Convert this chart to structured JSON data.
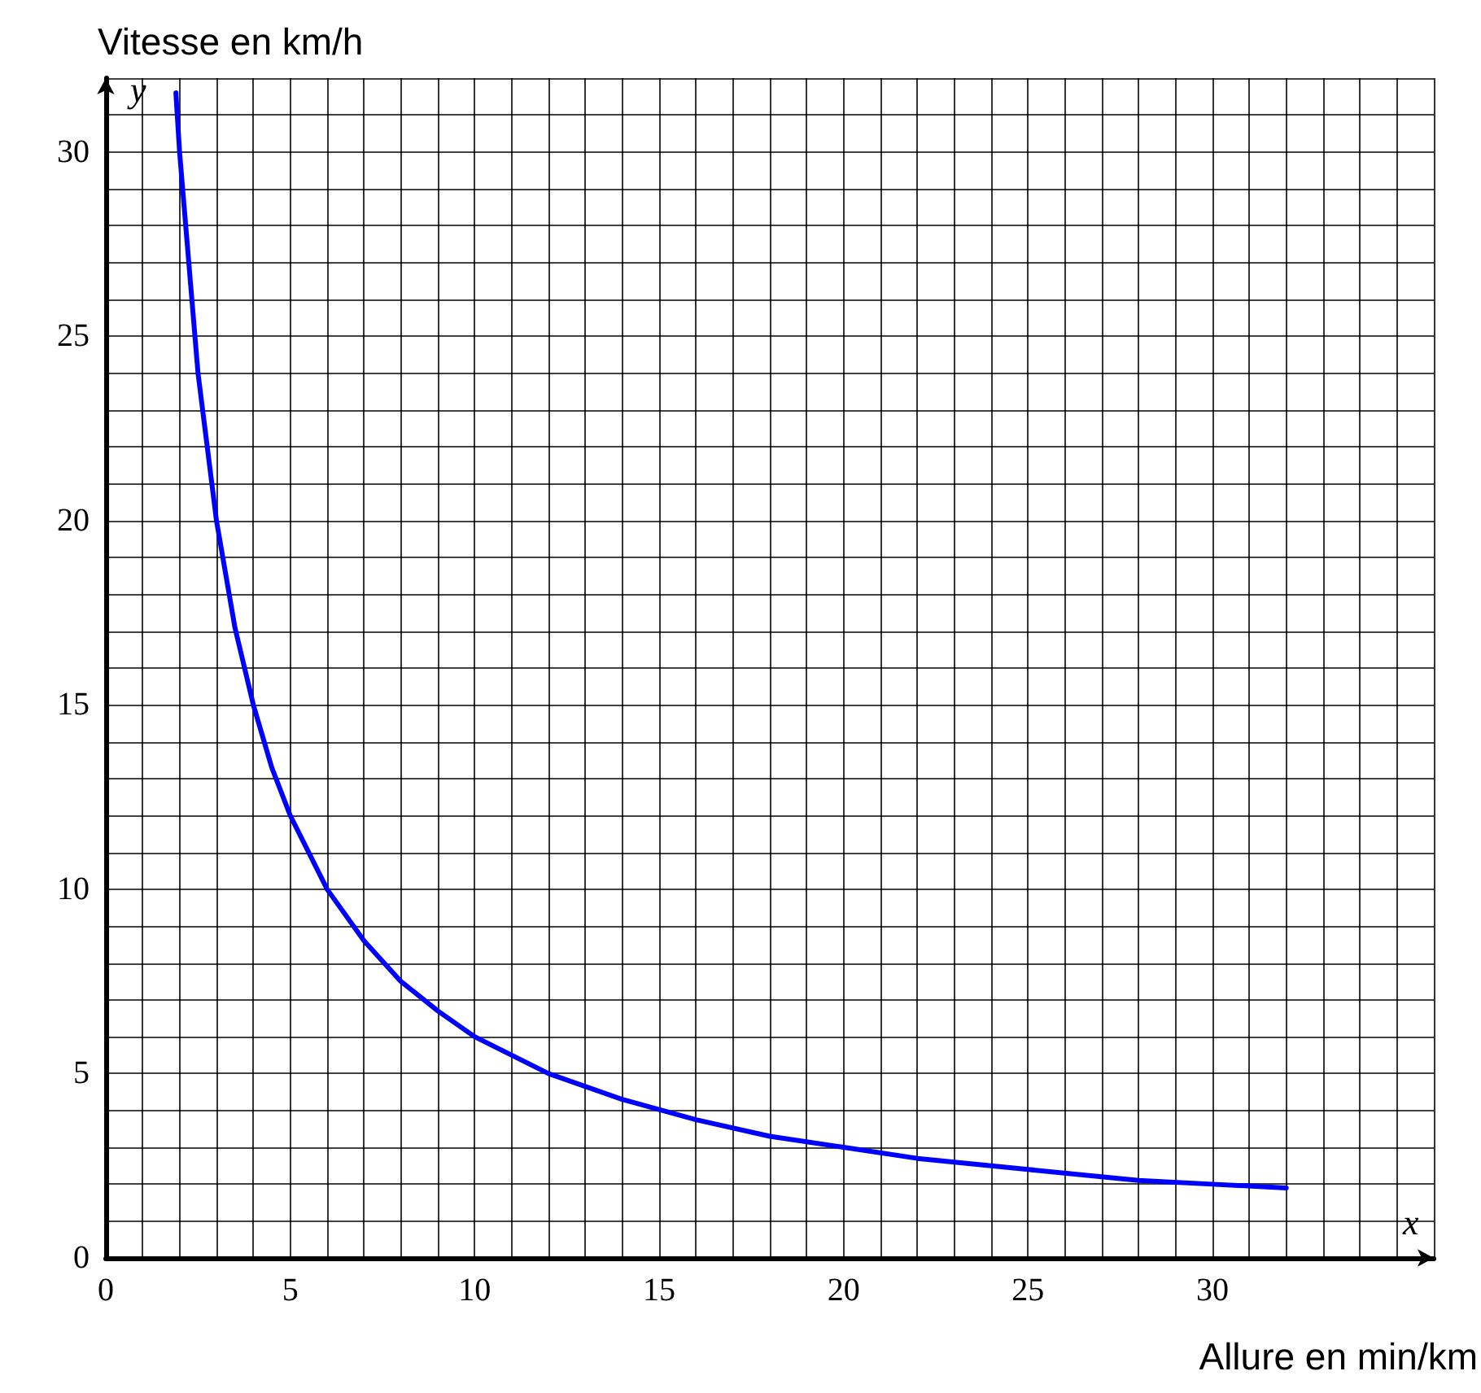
{
  "chart_data": {
    "type": "line",
    "xlabel": "Allure en min/km",
    "ylabel": "Vitesse en km/h",
    "annotations": [
      "x",
      "y"
    ],
    "series": [
      {
        "color": "#0000ff",
        "x": [
          1.9,
          2,
          2.5,
          3,
          3.5,
          4,
          4.5,
          5,
          6,
          7,
          8,
          9,
          10,
          12,
          14,
          16,
          18,
          20,
          22,
          25,
          28,
          30,
          32
        ],
        "values": [
          31.6,
          30,
          24,
          20,
          17.1,
          15,
          13.3,
          12,
          10,
          8.6,
          7.5,
          6.7,
          6,
          5,
          4.3,
          3.75,
          3.3,
          3,
          2.7,
          2.4,
          2.1,
          2,
          1.9
        ]
      }
    ],
    "xlim": [
      0,
      36
    ],
    "ylim": [
      0,
      32
    ],
    "xticks": [
      0,
      {
        "value": 1,
        "label": null
      },
      {
        "value": 2,
        "label": null
      },
      {
        "value": 3,
        "label": null
      },
      {
        "value": 4,
        "label": null
      },
      5,
      {
        "value": 6,
        "label": null
      },
      {
        "value": 7,
        "label": null
      },
      {
        "value": 8,
        "label": null
      },
      {
        "value": 9,
        "label": null
      },
      10,
      {
        "value": 11,
        "label": null
      },
      {
        "value": 12,
        "label": null
      },
      {
        "value": 13,
        "label": null
      },
      {
        "value": 14,
        "label": null
      },
      15,
      {
        "value": 16,
        "label": null
      },
      {
        "value": 17,
        "label": null
      },
      {
        "value": 18,
        "label": null
      },
      {
        "value": 19,
        "label": null
      },
      20,
      {
        "value": 21,
        "label": null
      },
      {
        "value": 22,
        "label": null
      },
      {
        "value": 23,
        "label": null
      },
      {
        "value": 24,
        "label": null
      },
      25,
      {
        "value": 26,
        "label": null
      },
      {
        "value": 27,
        "label": null
      },
      {
        "value": 28,
        "label": null
      },
      {
        "value": 29,
        "label": null
      },
      30,
      {
        "value": 31,
        "label": null
      },
      {
        "value": 32,
        "label": null
      },
      {
        "value": 33,
        "label": null
      },
      {
        "value": 34,
        "label": null
      },
      {
        "value": 35,
        "label": null
      },
      {
        "value": 36,
        "label": null
      }
    ],
    "yticks": [
      0,
      {
        "value": 1,
        "label": null
      },
      {
        "value": 2,
        "label": null
      },
      {
        "value": 3,
        "label": null
      },
      {
        "value": 4,
        "label": null
      },
      5,
      {
        "value": 6,
        "label": null
      },
      {
        "value": 7,
        "label": null
      },
      {
        "value": 8,
        "label": null
      },
      {
        "value": 9,
        "label": null
      },
      10,
      {
        "value": 11,
        "label": null
      },
      {
        "value": 12,
        "label": null
      },
      {
        "value": 13,
        "label": null
      },
      {
        "value": 14,
        "label": null
      },
      15,
      {
        "value": 16,
        "label": null
      },
      {
        "value": 17,
        "label": null
      },
      {
        "value": 18,
        "label": null
      },
      {
        "value": 19,
        "label": null
      },
      20,
      {
        "value": 21,
        "label": null
      },
      {
        "value": 22,
        "label": null
      },
      {
        "value": 23,
        "label": null
      },
      {
        "value": 24,
        "label": null
      },
      25,
      {
        "value": 26,
        "label": null
      },
      {
        "value": 27,
        "label": null
      },
      {
        "value": 28,
        "label": null
      },
      {
        "value": 29,
        "label": null
      },
      30,
      {
        "value": 31,
        "label": null
      },
      {
        "value": 32,
        "label": null
      }
    ],
    "grid": true,
    "marker": "none",
    "line_style": "solid"
  }
}
